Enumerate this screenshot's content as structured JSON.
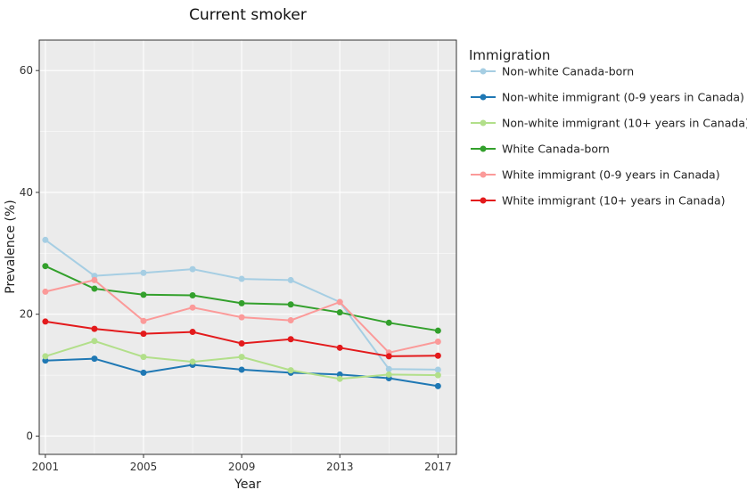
{
  "chart_data": {
    "type": "line",
    "title": "Current smoker",
    "xlabel": "Year",
    "ylabel": "Prevalence (%)",
    "xlim": [
      2000.75,
      2017.75
    ],
    "ylim": [
      -3,
      65
    ],
    "x_ticks": [
      2001,
      2005,
      2009,
      2013,
      2017
    ],
    "y_ticks": [
      0,
      20,
      40,
      60
    ],
    "grid": true,
    "legend_title": "Immigration",
    "legend_position": "right",
    "x": [
      2001,
      2003,
      2005,
      2007,
      2009,
      2011,
      2013,
      2015,
      2017
    ],
    "series": [
      {
        "name": "Non-white Canada-born",
        "color": "#a6cee3",
        "values": [
          32.2,
          26.3,
          26.8,
          27.4,
          25.8,
          25.6,
          22.0,
          11.0,
          10.9
        ]
      },
      {
        "name": "Non-white immigrant (0-9 years in Canada)",
        "color": "#1f78b4",
        "values": [
          12.4,
          12.7,
          10.4,
          11.7,
          10.9,
          10.4,
          10.1,
          9.5,
          8.2
        ]
      },
      {
        "name": "Non-white immigrant (10+ years in Canada)",
        "color": "#b2df8a",
        "values": [
          13.1,
          15.6,
          13.0,
          12.2,
          13.0,
          10.8,
          9.4,
          10.1,
          10.0
        ]
      },
      {
        "name": "White Canada-born",
        "color": "#33a02c",
        "values": [
          27.9,
          24.2,
          23.2,
          23.1,
          21.8,
          21.6,
          20.3,
          18.6,
          17.3
        ]
      },
      {
        "name": "White immigrant  (0-9 years in Canada)",
        "color": "#fb9a99",
        "values": [
          23.7,
          25.6,
          18.9,
          21.1,
          19.5,
          19.0,
          22.0,
          13.7,
          15.5
        ]
      },
      {
        "name": "White immigrant (10+ years in Canada)",
        "color": "#e31a1c",
        "values": [
          18.8,
          17.6,
          16.8,
          17.1,
          15.2,
          15.9,
          14.5,
          13.1,
          13.2
        ]
      }
    ]
  }
}
